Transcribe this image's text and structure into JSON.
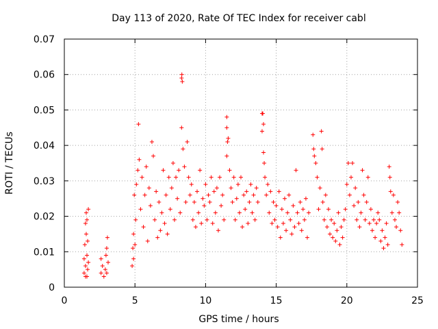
{
  "chart_data": {
    "type": "scatter",
    "title": "Day 113 of 2020, Rate Of TEC Index for receiver cabl",
    "xlabel": "GPS time / hours",
    "ylabel": "ROTI / TECUs",
    "xlim": [
      0,
      25
    ],
    "ylim": [
      0,
      0.07
    ],
    "xticks": [
      "0",
      "5",
      "10",
      "15",
      "20",
      "25"
    ],
    "yticks": [
      "0",
      "0.01",
      "0.02",
      "0.03",
      "0.04",
      "0.05",
      "0.06",
      "0.07"
    ],
    "grid": true,
    "marker": "+",
    "color": "#ff0000",
    "series": [
      {
        "points": [
          [
            1.4,
            0.004
          ],
          [
            1.4,
            0.008
          ],
          [
            1.45,
            0.012
          ],
          [
            1.5,
            0.003
          ],
          [
            1.5,
            0.006
          ],
          [
            1.55,
            0.015
          ],
          [
            1.55,
            0.021
          ],
          [
            1.6,
            0.009
          ],
          [
            1.6,
            0.019
          ],
          [
            1.65,
            0.005
          ],
          [
            1.65,
            0.013
          ],
          [
            1.7,
            0.022
          ],
          [
            1.7,
            0.007
          ],
          [
            1.5,
            0.018
          ],
          [
            1.6,
            0.003
          ],
          [
            2.6,
            0.004
          ],
          [
            2.6,
            0.008
          ],
          [
            2.7,
            0.006
          ],
          [
            2.9,
            0.005
          ],
          [
            2.95,
            0.009
          ],
          [
            3.0,
            0.004
          ],
          [
            3.0,
            0.011
          ],
          [
            3.05,
            0.014
          ],
          [
            3.1,
            0.007
          ],
          [
            2.8,
            0.003
          ],
          [
            4.8,
            0.006
          ],
          [
            4.85,
            0.011
          ],
          [
            4.9,
            0.015
          ],
          [
            4.9,
            0.008
          ],
          [
            4.95,
            0.026
          ],
          [
            5.0,
            0.012
          ],
          [
            5.05,
            0.019
          ],
          [
            5.1,
            0.029
          ],
          [
            5.2,
            0.033
          ],
          [
            5.25,
            0.046
          ],
          [
            5.3,
            0.036
          ],
          [
            5.4,
            0.022
          ],
          [
            5.5,
            0.031
          ],
          [
            5.6,
            0.017
          ],
          [
            5.7,
            0.026
          ],
          [
            5.8,
            0.034
          ],
          [
            5.9,
            0.013
          ],
          [
            6.0,
            0.028
          ],
          [
            6.1,
            0.023
          ],
          [
            6.2,
            0.041
          ],
          [
            6.3,
            0.037
          ],
          [
            6.4,
            0.019
          ],
          [
            6.5,
            0.027
          ],
          [
            6.6,
            0.014
          ],
          [
            6.7,
            0.024
          ],
          [
            6.8,
            0.016
          ],
          [
            6.9,
            0.021
          ],
          [
            7.0,
            0.033
          ],
          [
            7.1,
            0.018
          ],
          [
            7.2,
            0.026
          ],
          [
            7.3,
            0.015
          ],
          [
            7.4,
            0.031
          ],
          [
            7.5,
            0.022
          ],
          [
            7.6,
            0.028
          ],
          [
            7.7,
            0.035
          ],
          [
            7.8,
            0.019
          ],
          [
            7.9,
            0.031
          ],
          [
            8.0,
            0.025
          ],
          [
            8.1,
            0.033
          ],
          [
            8.2,
            0.021
          ],
          [
            8.3,
            0.059
          ],
          [
            8.32,
            0.06
          ],
          [
            8.35,
            0.058
          ],
          [
            8.3,
            0.045
          ],
          [
            8.4,
            0.039
          ],
          [
            8.5,
            0.034
          ],
          [
            8.6,
            0.024
          ],
          [
            8.7,
            0.041
          ],
          [
            8.8,
            0.031
          ],
          [
            8.9,
            0.026
          ],
          [
            9.0,
            0.029
          ],
          [
            9.1,
            0.019
          ],
          [
            9.2,
            0.024
          ],
          [
            9.3,
            0.017
          ],
          [
            9.4,
            0.027
          ],
          [
            9.5,
            0.021
          ],
          [
            9.6,
            0.033
          ],
          [
            9.7,
            0.018
          ],
          [
            9.8,
            0.025
          ],
          [
            9.9,
            0.023
          ],
          [
            10.0,
            0.029
          ],
          [
            10.1,
            0.019
          ],
          [
            10.2,
            0.026
          ],
          [
            10.3,
            0.024
          ],
          [
            10.4,
            0.031
          ],
          [
            10.5,
            0.018
          ],
          [
            10.6,
            0.027
          ],
          [
            10.7,
            0.021
          ],
          [
            10.8,
            0.028
          ],
          [
            10.9,
            0.016
          ],
          [
            11.0,
            0.031
          ],
          [
            11.1,
            0.023
          ],
          [
            11.2,
            0.026
          ],
          [
            11.3,
            0.019
          ],
          [
            11.5,
            0.048
          ],
          [
            11.5,
            0.045
          ],
          [
            11.55,
            0.041
          ],
          [
            11.5,
            0.037
          ],
          [
            11.6,
            0.042
          ],
          [
            11.7,
            0.033
          ],
          [
            11.8,
            0.028
          ],
          [
            11.9,
            0.024
          ],
          [
            12.0,
            0.031
          ],
          [
            12.1,
            0.019
          ],
          [
            12.2,
            0.025
          ],
          [
            12.3,
            0.029
          ],
          [
            12.4,
            0.021
          ],
          [
            12.5,
            0.031
          ],
          [
            12.6,
            0.017
          ],
          [
            12.7,
            0.026
          ],
          [
            12.8,
            0.022
          ],
          [
            12.9,
            0.027
          ],
          [
            13.0,
            0.018
          ],
          [
            13.1,
            0.024
          ],
          [
            13.2,
            0.029
          ],
          [
            13.3,
            0.021
          ],
          [
            13.4,
            0.026
          ],
          [
            13.5,
            0.019
          ],
          [
            13.6,
            0.028
          ],
          [
            13.7,
            0.024
          ],
          [
            14.0,
            0.049
          ],
          [
            14.05,
            0.049
          ],
          [
            14.1,
            0.046
          ],
          [
            14.0,
            0.044
          ],
          [
            14.1,
            0.038
          ],
          [
            14.15,
            0.035
          ],
          [
            14.2,
            0.031
          ],
          [
            14.3,
            0.026
          ],
          [
            14.4,
            0.029
          ],
          [
            14.5,
            0.021
          ],
          [
            14.6,
            0.027
          ],
          [
            14.7,
            0.018
          ],
          [
            14.8,
            0.024
          ],
          [
            14.9,
            0.019
          ],
          [
            15.0,
            0.023
          ],
          [
            15.1,
            0.017
          ],
          [
            15.2,
            0.027
          ],
          [
            15.3,
            0.014
          ],
          [
            15.4,
            0.022
          ],
          [
            15.5,
            0.018
          ],
          [
            15.6,
            0.025
          ],
          [
            15.7,
            0.016
          ],
          [
            15.8,
            0.021
          ],
          [
            15.9,
            0.026
          ],
          [
            16.0,
            0.019
          ],
          [
            16.1,
            0.015
          ],
          [
            16.2,
            0.023
          ],
          [
            16.3,
            0.017
          ],
          [
            16.4,
            0.033
          ],
          [
            16.5,
            0.021
          ],
          [
            16.6,
            0.018
          ],
          [
            16.7,
            0.024
          ],
          [
            16.8,
            0.016
          ],
          [
            16.9,
            0.022
          ],
          [
            17.0,
            0.019
          ],
          [
            17.1,
            0.025
          ],
          [
            17.2,
            0.014
          ],
          [
            17.3,
            0.021
          ],
          [
            17.6,
            0.043
          ],
          [
            17.65,
            0.039
          ],
          [
            17.7,
            0.037
          ],
          [
            17.8,
            0.035
          ],
          [
            17.9,
            0.031
          ],
          [
            18.0,
            0.022
          ],
          [
            18.1,
            0.028
          ],
          [
            18.2,
            0.044
          ],
          [
            18.25,
            0.039
          ],
          [
            18.3,
            0.024
          ],
          [
            18.4,
            0.019
          ],
          [
            18.5,
            0.026
          ],
          [
            18.6,
            0.017
          ],
          [
            18.7,
            0.022
          ],
          [
            18.8,
            0.015
          ],
          [
            18.9,
            0.019
          ],
          [
            19.0,
            0.014
          ],
          [
            19.1,
            0.018
          ],
          [
            19.2,
            0.013
          ],
          [
            19.3,
            0.016
          ],
          [
            19.4,
            0.021
          ],
          [
            19.5,
            0.012
          ],
          [
            19.6,
            0.017
          ],
          [
            19.7,
            0.014
          ],
          [
            19.8,
            0.019
          ],
          [
            19.9,
            0.022
          ],
          [
            20.0,
            0.029
          ],
          [
            20.1,
            0.035
          ],
          [
            20.2,
            0.026
          ],
          [
            20.3,
            0.031
          ],
          [
            20.4,
            0.035
          ],
          [
            20.5,
            0.023
          ],
          [
            20.6,
            0.028
          ],
          [
            20.7,
            0.019
          ],
          [
            20.8,
            0.024
          ],
          [
            20.9,
            0.017
          ],
          [
            21.0,
            0.021
          ],
          [
            21.1,
            0.033
          ],
          [
            21.2,
            0.026
          ],
          [
            21.3,
            0.019
          ],
          [
            21.4,
            0.024
          ],
          [
            21.5,
            0.031
          ],
          [
            21.6,
            0.018
          ],
          [
            21.7,
            0.022
          ],
          [
            21.8,
            0.016
          ],
          [
            21.9,
            0.019
          ],
          [
            22.0,
            0.014
          ],
          [
            22.1,
            0.018
          ],
          [
            22.2,
            0.021
          ],
          [
            22.3,
            0.019
          ],
          [
            22.4,
            0.013
          ],
          [
            22.5,
            0.016
          ],
          [
            22.6,
            0.011
          ],
          [
            22.7,
            0.014
          ],
          [
            22.8,
            0.018
          ],
          [
            22.9,
            0.012
          ],
          [
            23.0,
            0.034
          ],
          [
            23.05,
            0.031
          ],
          [
            23.1,
            0.027
          ],
          [
            23.2,
            0.021
          ],
          [
            23.3,
            0.026
          ],
          [
            23.4,
            0.019
          ],
          [
            23.5,
            0.017
          ],
          [
            23.6,
            0.024
          ],
          [
            23.7,
            0.021
          ],
          [
            23.8,
            0.016
          ],
          [
            23.9,
            0.012
          ]
        ]
      }
    ]
  }
}
